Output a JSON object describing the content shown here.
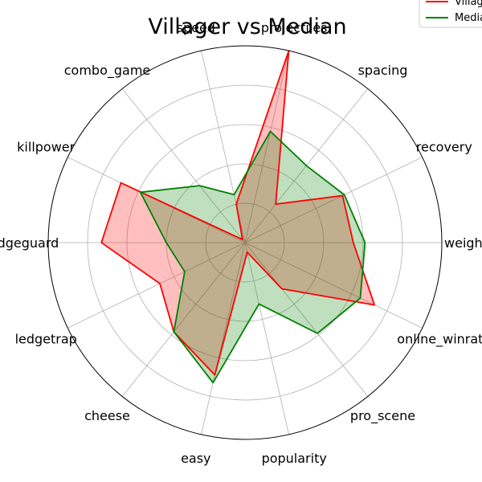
{
  "chart_data": {
    "type": "radar",
    "title": "Villager vs Median",
    "categories": [
      "weight",
      "recovery",
      "spacing",
      "projectiles",
      "speed",
      "combo_game",
      "killpower",
      "edgeguard",
      "ledgetrap",
      "cheese",
      "easy",
      "popularity",
      "pro_scene",
      "online_winrate"
    ],
    "series": [
      {
        "name": "Villager",
        "color": "#ff0000",
        "fill": "#ff0000",
        "values": [
          0.55,
          0.55,
          0.25,
          1.0,
          0.2,
          0.02,
          0.7,
          0.73,
          0.48,
          0.58,
          0.69,
          0.05,
          0.3,
          0.73
        ]
      },
      {
        "name": "Median",
        "color": "#008000",
        "fill": "#008000",
        "values": [
          0.61,
          0.56,
          0.5,
          0.58,
          0.25,
          0.37,
          0.59,
          0.4,
          0.34,
          0.58,
          0.73,
          0.32,
          0.59,
          0.65
        ]
      }
    ],
    "rlim": [
      0,
      1
    ],
    "grid": true,
    "legend": "top-right"
  },
  "title": "Villager vs Median",
  "legend": {
    "items": [
      "Villager",
      "Median"
    ]
  }
}
